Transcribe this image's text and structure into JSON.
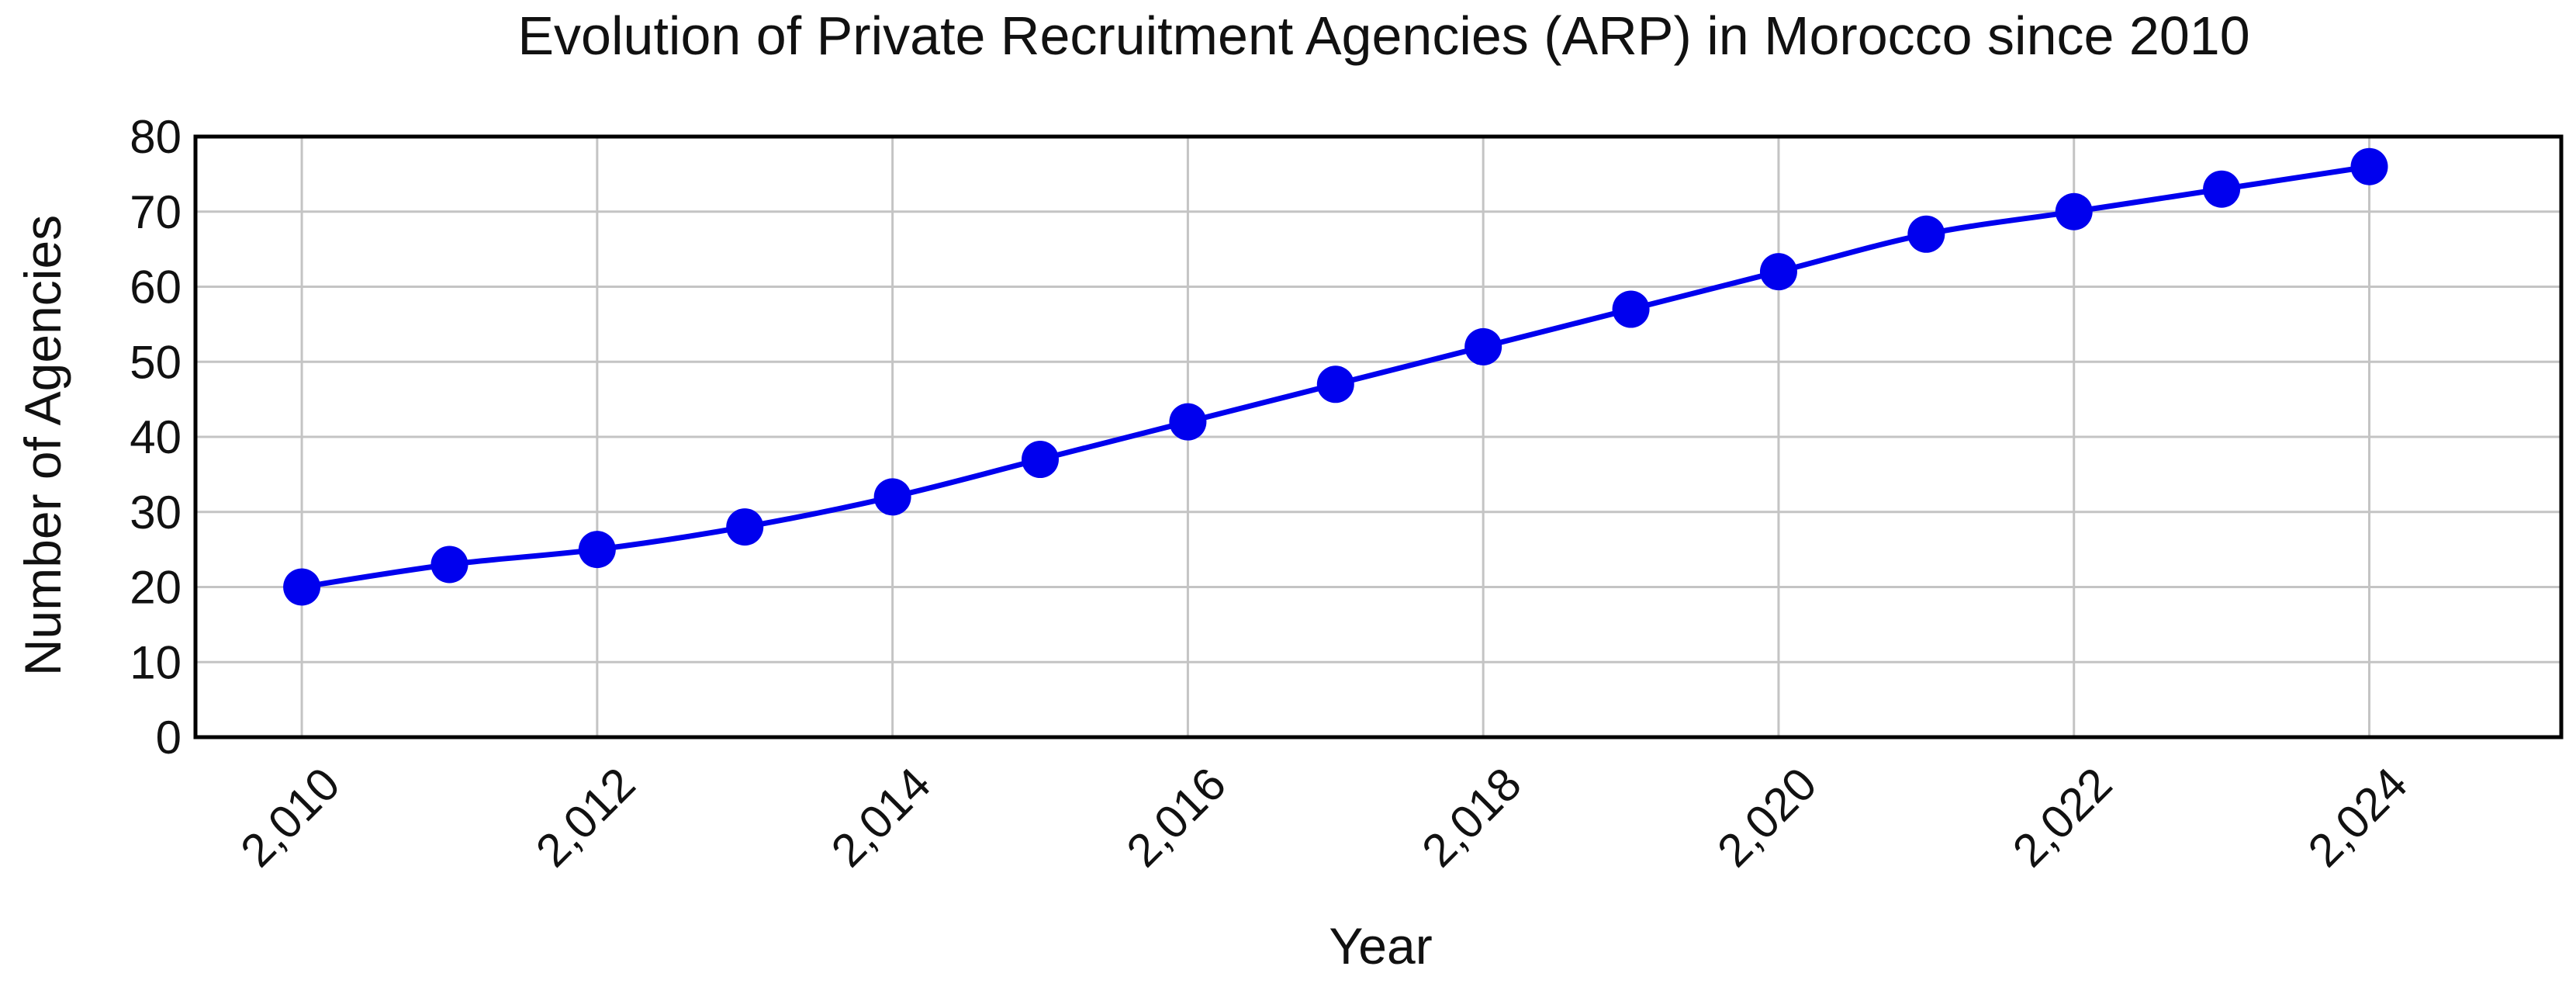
{
  "chart_data": {
    "type": "line",
    "title": "Evolution of Private Recruitment Agencies (ARP) in Morocco since 2010",
    "xlabel": "Year",
    "ylabel": "Number of Agencies",
    "x": [
      2010,
      2011,
      2012,
      2013,
      2014,
      2015,
      2016,
      2017,
      2018,
      2019,
      2020,
      2021,
      2022,
      2023,
      2024
    ],
    "series": [
      {
        "values": [
          20,
          23,
          25,
          28,
          32,
          37,
          42,
          47,
          52,
          57,
          62,
          67,
          70,
          73,
          76
        ]
      }
    ],
    "xlim": [
      2009.28,
      2025.3
    ],
    "ylim": [
      0,
      80
    ],
    "x_ticks": [
      2010,
      2012,
      2014,
      2016,
      2018,
      2020,
      2022,
      2024
    ],
    "x_tick_labels": [
      "2,010",
      "2,012",
      "2,014",
      "2,016",
      "2,018",
      "2,020",
      "2,022",
      "2,024"
    ],
    "y_ticks": [
      0,
      10,
      20,
      30,
      40,
      50,
      60,
      70,
      80
    ],
    "y_tick_labels": [
      "0",
      "10",
      "20",
      "30",
      "40",
      "50",
      "60",
      "70",
      "80"
    ],
    "x_grid_ticks": [
      2010,
      2012,
      2014,
      2016,
      2018,
      2020,
      2022,
      2024
    ],
    "grid": true,
    "legend": "none",
    "colors": {
      "line": "#0000ee",
      "marker": "#0000ee",
      "grid": "#c4c4c4",
      "axis": "#000000",
      "text": "#111111",
      "background": "#ffffff"
    }
  }
}
